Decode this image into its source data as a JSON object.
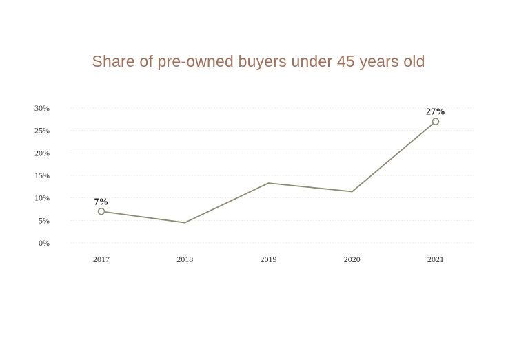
{
  "chart_data": {
    "type": "line",
    "title": "Share of pre-owned buyers under 45 years old",
    "xlabel": "",
    "ylabel": "",
    "categories": [
      "2017",
      "2018",
      "2019",
      "2020",
      "2021"
    ],
    "series": [
      {
        "values": [
          7,
          4.5,
          13.3,
          11.4,
          27
        ]
      }
    ],
    "data_labels": [
      {
        "index": 0,
        "text": "7%"
      },
      {
        "index": 4,
        "text": "27%"
      }
    ],
    "ylim": [
      0,
      30
    ],
    "yticks": [
      0,
      5,
      10,
      15,
      20,
      25,
      30
    ],
    "ytick_labels": [
      "0%",
      "5%",
      "10%",
      "15%",
      "20%",
      "25%",
      "30%"
    ],
    "grid": true,
    "line_color": "#8e8a75",
    "title_color": "#a4705a",
    "grid_color": "#ececec"
  }
}
